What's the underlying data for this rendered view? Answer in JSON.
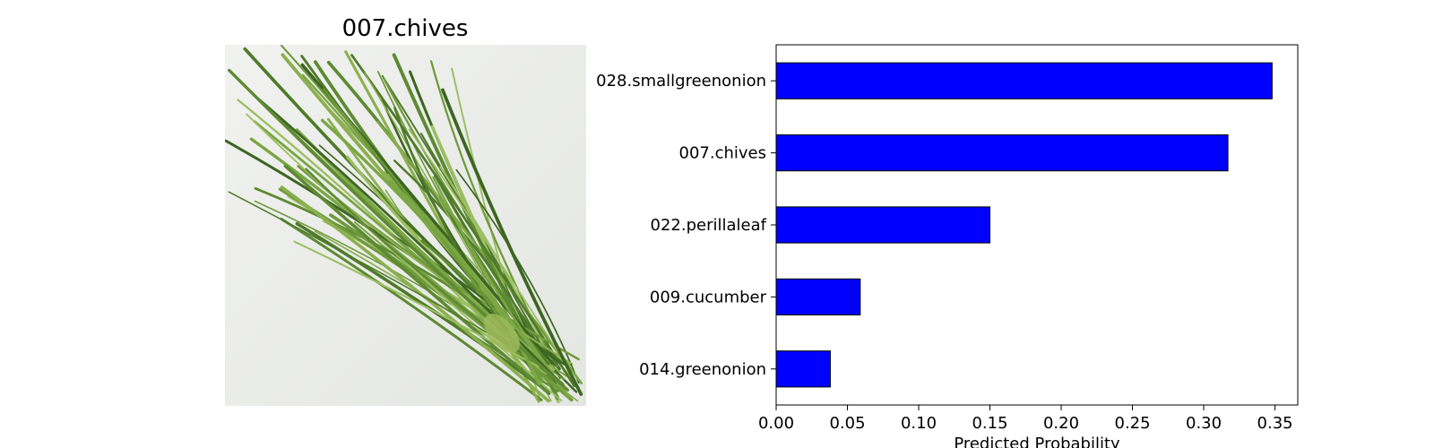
{
  "image_panel": {
    "title": "007.chives",
    "image_icon": "chives-bundle-photo"
  },
  "chart_data": {
    "type": "bar",
    "orientation": "horizontal",
    "categories": [
      "028.smallgreenonion",
      "007.chives",
      "022.perillaleaf",
      "009.cucumber",
      "014.greenonion"
    ],
    "values": [
      0.348,
      0.317,
      0.15,
      0.059,
      0.038
    ],
    "xlabel": "Predicted Probability",
    "ylabel": "",
    "xlim": [
      0,
      0.366
    ],
    "xticks": [
      0.0,
      0.05,
      0.1,
      0.15,
      0.2,
      0.25,
      0.3,
      0.35
    ],
    "xtick_labels": [
      "0.00",
      "0.05",
      "0.10",
      "0.15",
      "0.20",
      "0.25",
      "0.30",
      "0.35"
    ],
    "bar_color": "#0000ff",
    "edge_color": "#000000",
    "grid": false,
    "legend": "none"
  }
}
